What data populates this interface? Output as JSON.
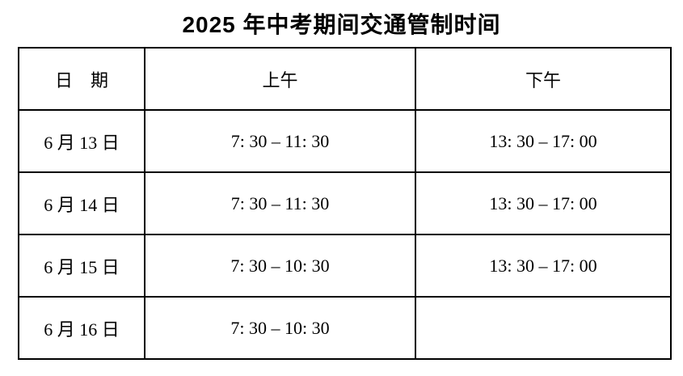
{
  "title": "2025 年中考期间交通管制时间",
  "colors": {
    "text": "#000000",
    "border": "#000000",
    "background": "#ffffff"
  },
  "table": {
    "headers": {
      "date": "日　期",
      "morning": "上午",
      "afternoon": "下午"
    },
    "rows": [
      {
        "date": "6 月 13 日",
        "morning": "7: 30 – 11: 30",
        "afternoon": "13: 30 – 17: 00"
      },
      {
        "date": "6 月 14 日",
        "morning": "7: 30 – 11: 30",
        "afternoon": "13: 30 – 17: 00"
      },
      {
        "date": "6 月 15 日",
        "morning": "7: 30 – 10: 30",
        "afternoon": "13: 30 – 17: 00"
      },
      {
        "date": "6 月 16 日",
        "morning": "7: 30 – 10: 30",
        "afternoon": ""
      }
    ]
  }
}
